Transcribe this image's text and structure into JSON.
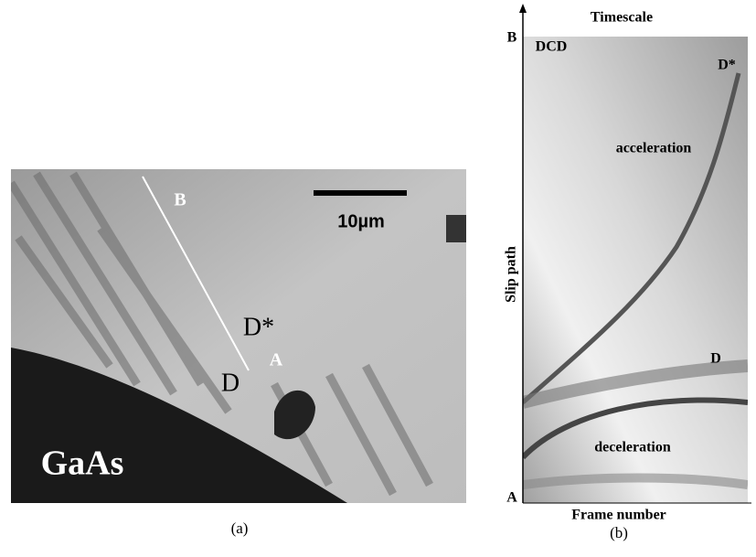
{
  "panel_a": {
    "caption": "(a)",
    "material": "GaAs",
    "scale_bar": "10µm",
    "labels": {
      "B": "B",
      "D_star": "D*",
      "A": "A",
      "D": "D"
    }
  },
  "panel_b": {
    "caption": "(b)",
    "x_axis_label": "Frame number",
    "y_axis_label": "Slip path",
    "top_label": "Timescale",
    "labels": {
      "B": "B",
      "A": "A",
      "DCD": "DCD",
      "D_star": "D*",
      "D": "D",
      "acceleration": "acceleration",
      "deceleration": "deceleration"
    }
  }
}
